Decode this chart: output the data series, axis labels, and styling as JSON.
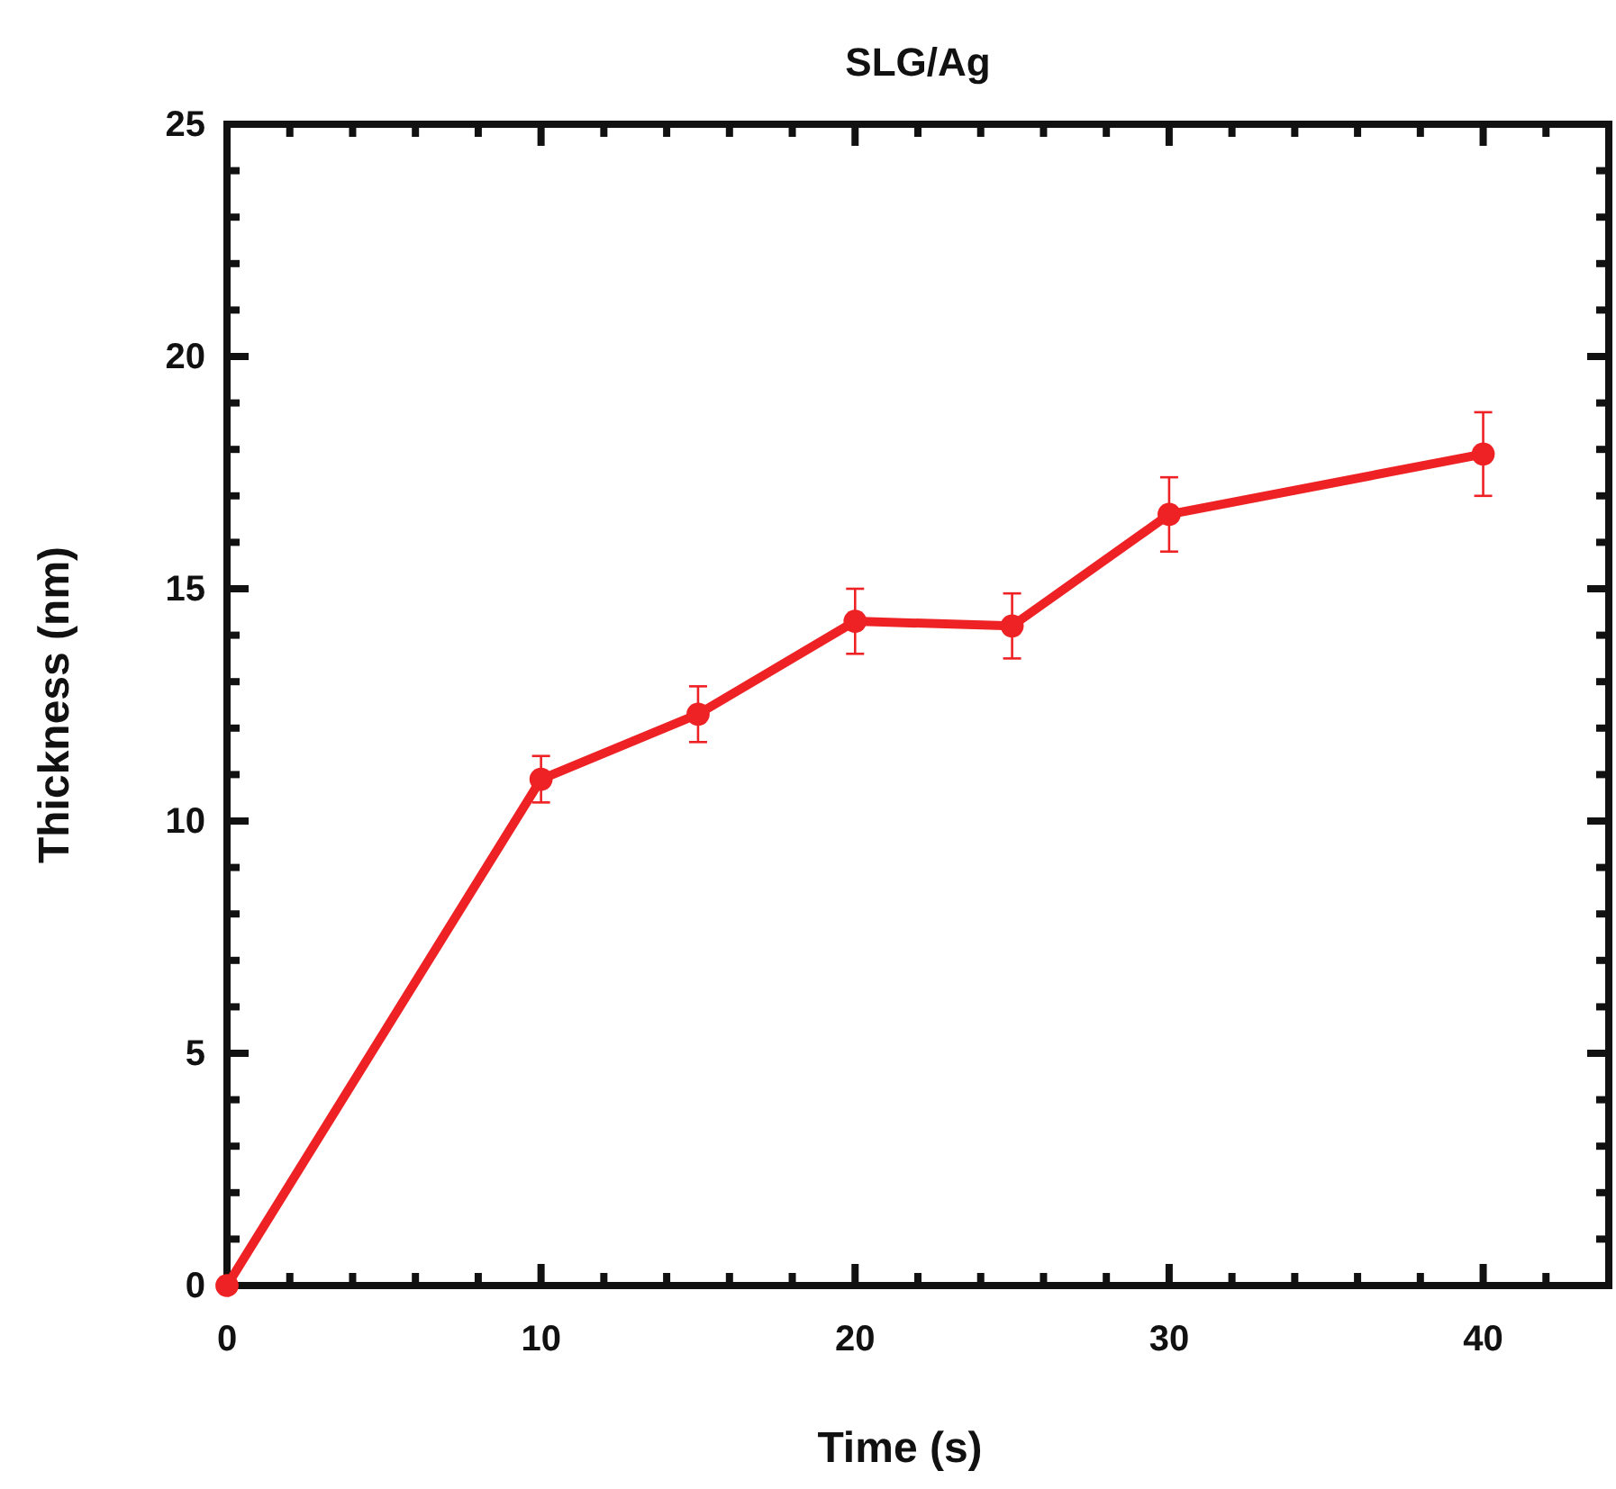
{
  "chart_data": {
    "type": "line",
    "title": "SLG/Ag",
    "xlabel": "Time (s)",
    "ylabel": "Thickness (nm)",
    "x": [
      0,
      10,
      15,
      20,
      25,
      30,
      40
    ],
    "series": [
      {
        "color": "#ee2224",
        "values": [
          0,
          10.9,
          12.3,
          14.3,
          14.2,
          16.6,
          17.9
        ],
        "errors": [
          null,
          0.5,
          0.6,
          0.7,
          0.7,
          0.8,
          0.9
        ]
      }
    ],
    "xlim": [
      0,
      44
    ],
    "ylim": [
      0,
      25
    ],
    "xticks": [
      0,
      {
        "value": 2,
        "label": null
      },
      {
        "value": 4,
        "label": null
      },
      {
        "value": 6,
        "label": null
      },
      {
        "value": 8,
        "label": null
      },
      10,
      {
        "value": 12,
        "label": null
      },
      {
        "value": 14,
        "label": null
      },
      {
        "value": 16,
        "label": null
      },
      {
        "value": 18,
        "label": null
      },
      20,
      {
        "value": 22,
        "label": null
      },
      {
        "value": 24,
        "label": null
      },
      {
        "value": 26,
        "label": null
      },
      {
        "value": 28,
        "label": null
      },
      30,
      {
        "value": 32,
        "label": null
      },
      {
        "value": 34,
        "label": null
      },
      {
        "value": 36,
        "label": null
      },
      {
        "value": 38,
        "label": null
      },
      40,
      {
        "value": 42,
        "label": null
      }
    ],
    "yticks": [
      0,
      {
        "value": 1,
        "label": null
      },
      {
        "value": 2,
        "label": null
      },
      {
        "value": 3,
        "label": null
      },
      {
        "value": 4,
        "label": null
      },
      5,
      {
        "value": 6,
        "label": null
      },
      {
        "value": 7,
        "label": null
      },
      {
        "value": 8,
        "label": null
      },
      {
        "value": 9,
        "label": null
      },
      10,
      {
        "value": 11,
        "label": null
      },
      {
        "value": 12,
        "label": null
      },
      {
        "value": 13,
        "label": null
      },
      {
        "value": 14,
        "label": null
      },
      15,
      {
        "value": 16,
        "label": null
      },
      {
        "value": 17,
        "label": null
      },
      {
        "value": 18,
        "label": null
      },
      {
        "value": 19,
        "label": null
      },
      20,
      {
        "value": 21,
        "label": null
      },
      {
        "value": 22,
        "label": null
      },
      {
        "value": 23,
        "label": null
      },
      {
        "value": 24,
        "label": null
      },
      25
    ],
    "grid": false,
    "marker": "circle",
    "line_style": "solid"
  }
}
